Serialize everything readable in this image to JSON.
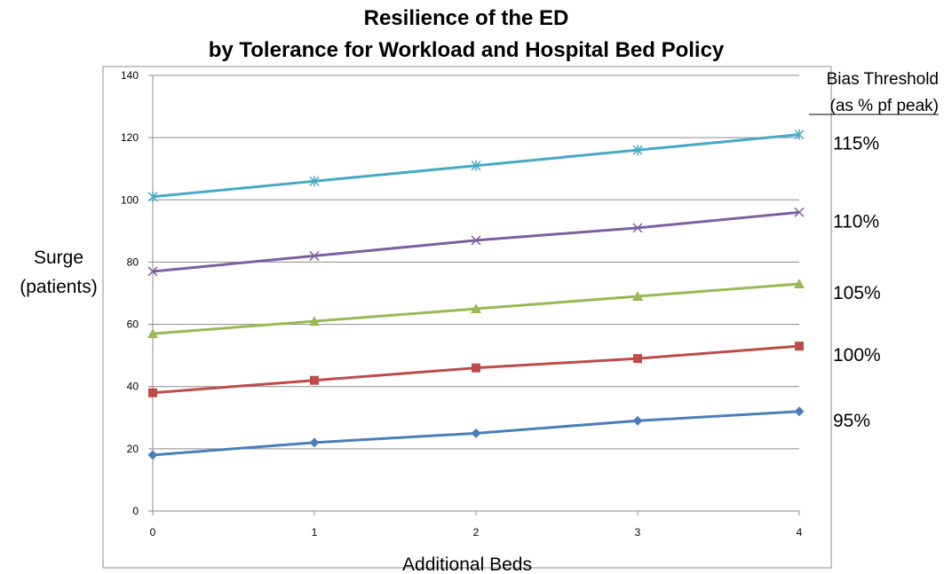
{
  "chart_data": {
    "type": "line",
    "title": [
      "Resilience of the ED",
      "by Tolerance for Workload and Hospital Bed Policy"
    ],
    "xlabel": "Additional Beds",
    "ylabel": [
      "Surge",
      "(patients)"
    ],
    "x": [
      0,
      1,
      2,
      3,
      4
    ],
    "xticks": [
      "0",
      "1",
      "2",
      "3",
      "4"
    ],
    "ylim": [
      0,
      140
    ],
    "yticks": [
      "0",
      "20",
      "40",
      "60",
      "80",
      "100",
      "120",
      "140"
    ],
    "grid": true,
    "legend_title": [
      "Bias Threshold",
      "(as % pf peak)"
    ],
    "series": [
      {
        "name": "95%",
        "values": [
          18,
          22,
          25,
          29,
          32
        ],
        "color": "#4a7ebb",
        "marker": "diamond"
      },
      {
        "name": "100%",
        "values": [
          38,
          42,
          46,
          49,
          53
        ],
        "color": "#be4b48",
        "marker": "square"
      },
      {
        "name": "105%",
        "values": [
          57,
          61,
          65,
          69,
          73
        ],
        "color": "#98b954",
        "marker": "triangle"
      },
      {
        "name": "110%",
        "values": [
          77,
          82,
          87,
          91,
          96
        ],
        "color": "#7d60a0",
        "marker": "x"
      },
      {
        "name": "115%",
        "values": [
          101,
          106,
          111,
          116,
          121
        ],
        "color": "#46aac5",
        "marker": "star"
      }
    ]
  }
}
